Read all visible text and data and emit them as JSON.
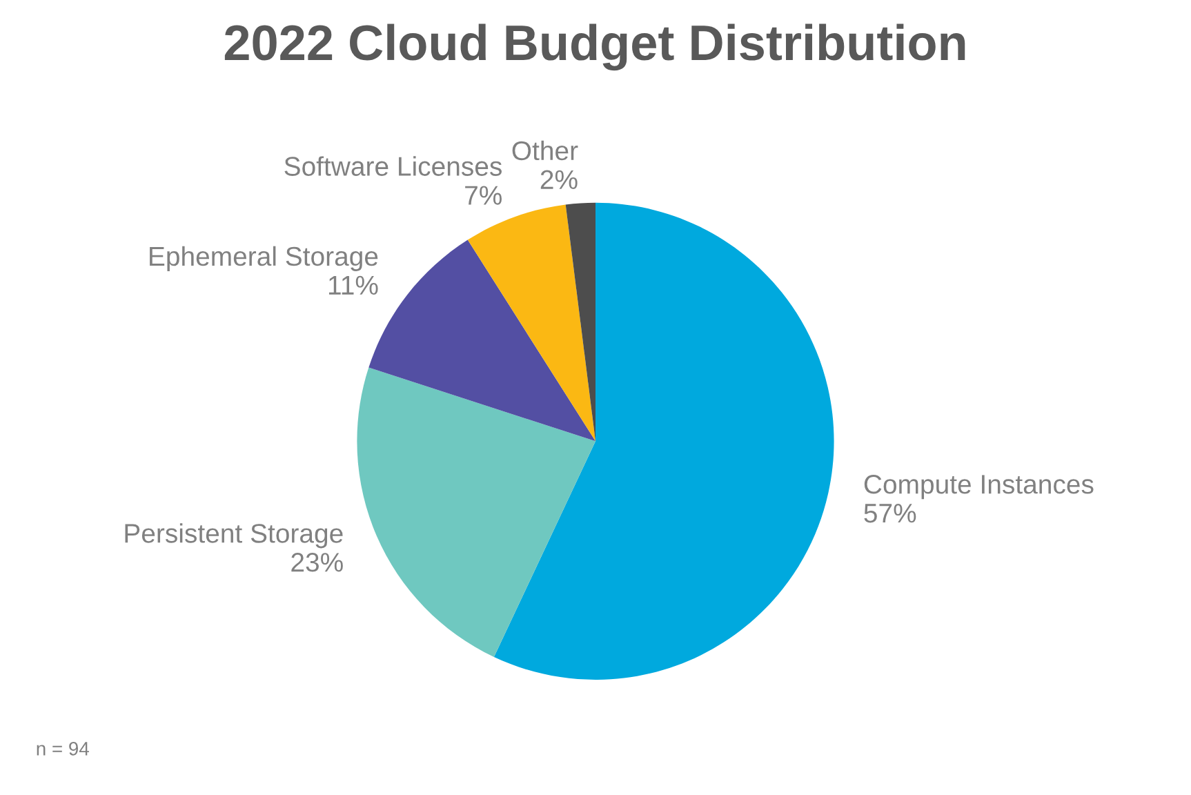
{
  "chart_data": {
    "type": "pie",
    "title": "2022 Cloud Budget Distribution",
    "categories": [
      "Compute Instances",
      "Persistent Storage",
      "Ephemeral Storage",
      "Software Licenses",
      "Other"
    ],
    "values": [
      57,
      23,
      11,
      7,
      2
    ],
    "value_labels": [
      "57%",
      "23%",
      "11%",
      "7%",
      "2%"
    ],
    "colors": [
      "#00a9de",
      "#6fc8c0",
      "#534fa3",
      "#fbb813",
      "#4d4d4d"
    ],
    "annotations": [
      "n = 94"
    ]
  }
}
